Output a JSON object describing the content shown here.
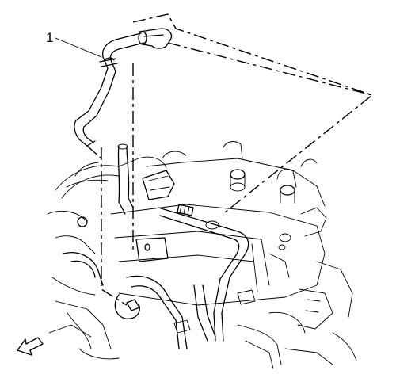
{
  "callouts": [
    {
      "number": "1"
    }
  ],
  "icons": {
    "view_arrow": "front-view-arrow-icon"
  },
  "colors": {
    "line": "#000000",
    "background": "#ffffff"
  }
}
